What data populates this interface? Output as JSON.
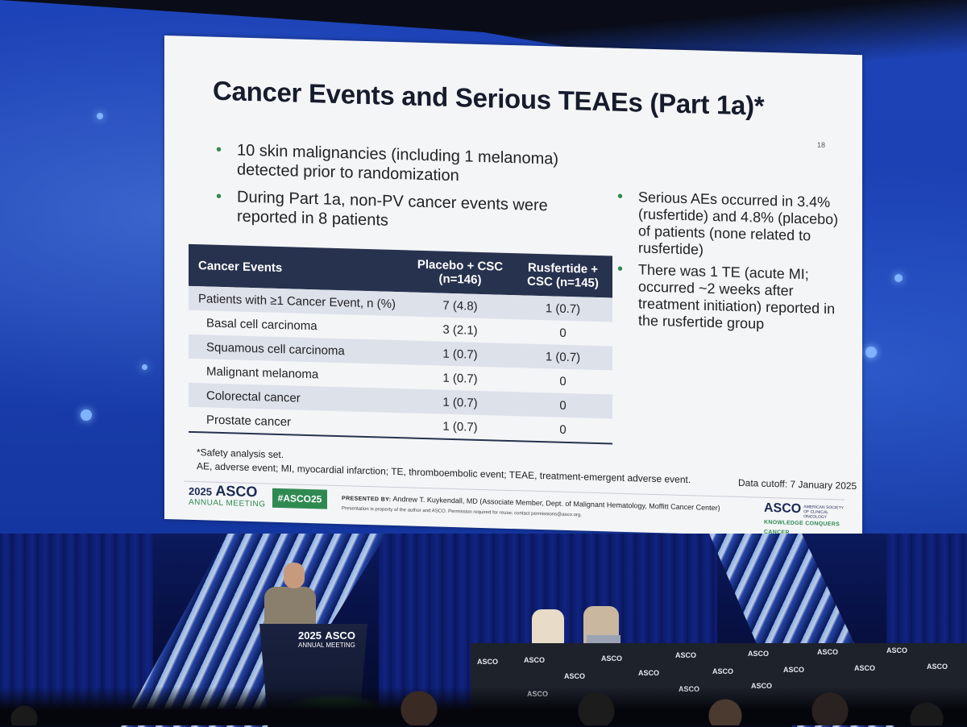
{
  "slide": {
    "title": "Cancer Events and Serious TEAEs (Part 1a)*",
    "number": "18",
    "bullets": [
      "10 skin malignancies (including 1 melanoma) detected prior to randomization",
      "During Part 1a, non-PV cancer events were reported in 8 patients"
    ],
    "side_bullets": [
      "Serious AEs occurred in 3.4% (rusfertide) and 4.8% (placebo) of patients (none related to rusfertide)",
      "There was 1 TE (acute MI; occurred ~2 weeks after treatment initiation) reported in the rusfertide group"
    ],
    "table": {
      "headers": [
        "Cancer Events",
        "Placebo + CSC (n=146)",
        "Rusfertide + CSC (n=145)"
      ],
      "rows": [
        [
          "Patients with ≥1 Cancer Event, n (%)",
          "7 (4.8)",
          "1 (0.7)"
        ],
        [
          "Basal cell carcinoma",
          "3 (2.1)",
          "0"
        ],
        [
          "Squamous cell carcinoma",
          "1 (0.7)",
          "1 (0.7)"
        ],
        [
          "Malignant melanoma",
          "1 (0.7)",
          "0"
        ],
        [
          "Colorectal cancer",
          "1 (0.7)",
          "0"
        ],
        [
          "Prostate cancer",
          "1 (0.7)",
          "0"
        ]
      ]
    },
    "footnote": "*Safety analysis set.",
    "abbreviations": "AE, adverse event; MI, myocardial infarction; TE, thromboembolic event; TEAE, treatment-emergent adverse event.",
    "data_cutoff": "Data cutoff: 7 January 2025",
    "footer": {
      "meeting_year": "2025",
      "meeting_name": "ASCO",
      "meeting_sub": "ANNUAL MEETING",
      "hashtag": "#ASCO25",
      "presented_by_label": "PRESENTED BY:",
      "presenter": "Andrew T. Kuykendall, MD (Associate Member, Dept. of Malignant Hematology, Moffitt Cancer Center)",
      "permission": "Presentation is property of the author and ASCO. Permission required for reuse; contact permissions@asco.org.",
      "org_name": "ASCO",
      "org_full": "AMERICAN SOCIETY OF CLINICAL ONCOLOGY",
      "org_tagline": "KNOWLEDGE CONQUERS CANCER"
    }
  },
  "podium": {
    "year": "2025",
    "name": "ASCO",
    "sub": "ANNUAL MEETING"
  },
  "panel_table": {
    "word": "ASCO"
  },
  "colors": {
    "screen_blue": "#1d43b8",
    "table_header": "#27324f",
    "asco_green": "#2f8a52"
  }
}
